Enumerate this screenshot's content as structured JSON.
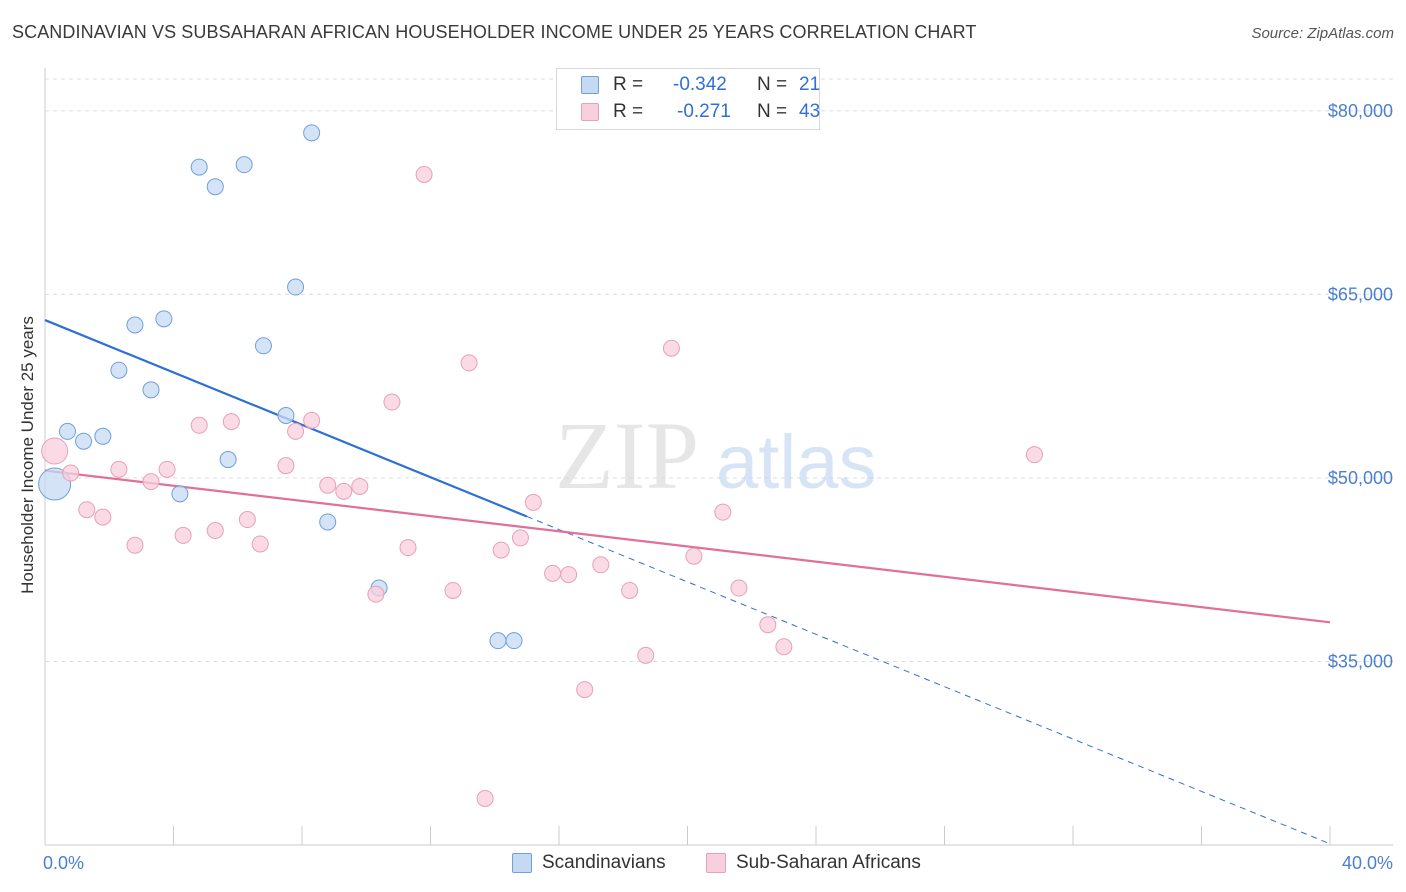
{
  "chart_data": {
    "type": "scatter",
    "title": "SCANDINAVIAN VS SUBSAHARAN AFRICAN HOUSEHOLDER INCOME UNDER 25 YEARS CORRELATION CHART",
    "source": "Source: ZipAtlas.com",
    "xlabel": "",
    "ylabel": "Householder Income Under 25 years",
    "xlim": [
      0,
      40
    ],
    "ylim": [
      20000,
      83500
    ],
    "x_tick_labels": [
      "0.0%",
      "40.0%"
    ],
    "y_ticks": [
      {
        "value": 35000,
        "label": "$35,000"
      },
      {
        "value": 50000,
        "label": "$50,000"
      },
      {
        "value": 65000,
        "label": "$65,000"
      },
      {
        "value": 80000,
        "label": "$80,000"
      }
    ],
    "watermark": "ZIPatlas",
    "series": [
      {
        "name": "Scandinavians",
        "color": "#6fa0dc",
        "fill": "#c6d9f3",
        "line_color": "#2f6fd6",
        "R": "-0.342",
        "N": "21",
        "trend": {
          "x0": 0,
          "y0": 62900,
          "x1": 40,
          "y1": 20100,
          "solid_until": 15
        },
        "points": [
          [
            0.3,
            49500
          ],
          [
            0.7,
            53800
          ],
          [
            1.2,
            53000
          ],
          [
            1.8,
            53400
          ],
          [
            2.3,
            58800
          ],
          [
            2.8,
            62500
          ],
          [
            3.3,
            57200
          ],
          [
            3.7,
            63000
          ],
          [
            4.2,
            48700
          ],
          [
            4.8,
            75400
          ],
          [
            5.3,
            73800
          ],
          [
            5.7,
            51500
          ],
          [
            6.2,
            75600
          ],
          [
            6.8,
            60800
          ],
          [
            7.5,
            55100
          ],
          [
            7.8,
            65600
          ],
          [
            8.3,
            78200
          ],
          [
            8.8,
            46400
          ],
          [
            10.4,
            41000
          ],
          [
            14.1,
            36700
          ],
          [
            14.6,
            36700
          ]
        ]
      },
      {
        "name": "Sub-Saharan Africans",
        "color": "#e7a0b8",
        "fill": "#f8cfdc",
        "line_color": "#e0709a",
        "R": "-0.271",
        "N": "43",
        "trend": {
          "x0": 0,
          "y0": 50600,
          "x1": 40,
          "y1": 38200
        },
        "points": [
          [
            0.3,
            52200
          ],
          [
            0.8,
            50400
          ],
          [
            1.3,
            47400
          ],
          [
            1.8,
            46800
          ],
          [
            2.3,
            50700
          ],
          [
            2.8,
            44500
          ],
          [
            3.3,
            49700
          ],
          [
            3.8,
            50700
          ],
          [
            4.3,
            45300
          ],
          [
            4.8,
            54300
          ],
          [
            5.3,
            45700
          ],
          [
            5.8,
            54600
          ],
          [
            6.3,
            46600
          ],
          [
            6.7,
            44600
          ],
          [
            7.5,
            51000
          ],
          [
            7.8,
            53800
          ],
          [
            8.3,
            54700
          ],
          [
            8.8,
            49400
          ],
          [
            9.3,
            48900
          ],
          [
            9.8,
            49300
          ],
          [
            10.3,
            40500
          ],
          [
            10.8,
            56200
          ],
          [
            11.3,
            44300
          ],
          [
            11.8,
            74800
          ],
          [
            12.7,
            40800
          ],
          [
            13.2,
            59400
          ],
          [
            13.7,
            23800
          ],
          [
            14.2,
            44100
          ],
          [
            14.8,
            45100
          ],
          [
            15.2,
            48000
          ],
          [
            15.8,
            42200
          ],
          [
            16.3,
            42100
          ],
          [
            16.8,
            32700
          ],
          [
            17.3,
            42900
          ],
          [
            18.2,
            40800
          ],
          [
            18.7,
            35500
          ],
          [
            19.5,
            60600
          ],
          [
            20.2,
            43600
          ],
          [
            21.1,
            47200
          ],
          [
            21.6,
            41000
          ],
          [
            22.5,
            38000
          ],
          [
            23.0,
            36200
          ],
          [
            30.8,
            51900
          ]
        ]
      }
    ]
  }
}
